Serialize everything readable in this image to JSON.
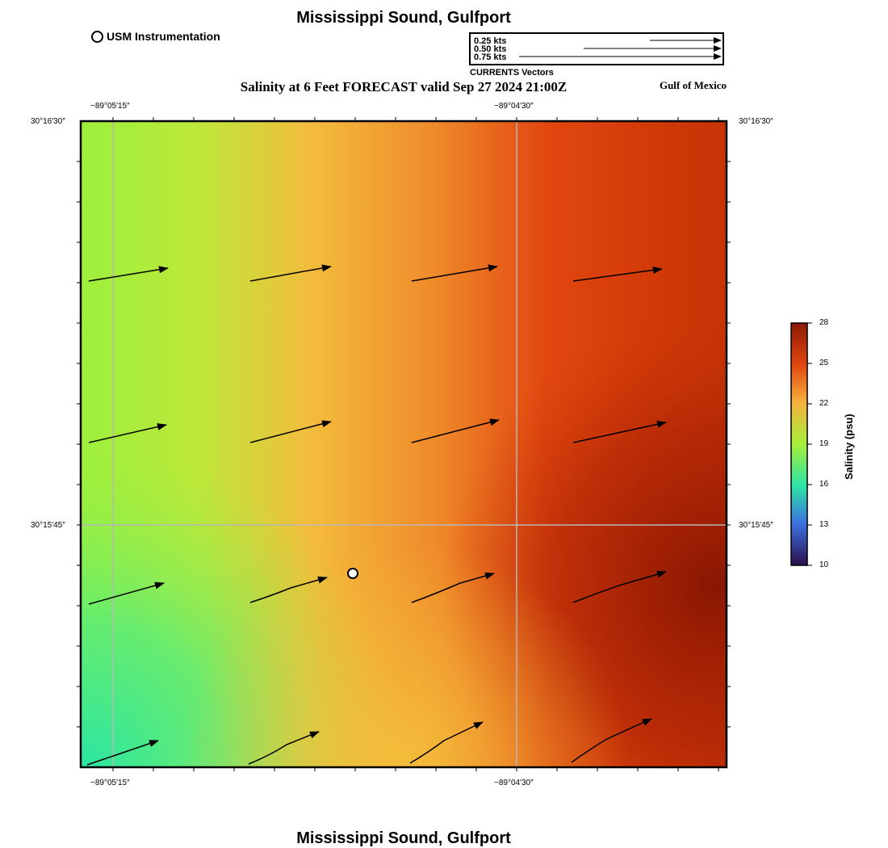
{
  "header": {
    "title": "Mississippi Sound, Gulfport",
    "subtitle": "Salinity at 6 Feet FORECAST valid Sep 27 2024 21:00Z",
    "region": "Gulf of Mexico",
    "footer_title": "Mississippi Sound, Gulfport"
  },
  "station_legend": {
    "label": "USM Instrumentation",
    "icon": "circle-marker-icon"
  },
  "vector_legend": {
    "caption": "CURRENTS Vectors",
    "entries": [
      {
        "label": "0.25 kts",
        "speed": 0.25
      },
      {
        "label": "0.50 kts",
        "speed": 0.5
      },
      {
        "label": "0.75 kts",
        "speed": 0.75
      }
    ]
  },
  "axes": {
    "lon_labels": [
      "−89°05′15″",
      "−89°04′30″"
    ],
    "lat_labels": [
      "30°16′30″",
      "30°15′45″"
    ]
  },
  "colorbar": {
    "label": "Salinity (psu)",
    "ticks": [
      "28",
      "25",
      "22",
      "19",
      "16",
      "13",
      "10"
    ],
    "colors": [
      "#8b1a03",
      "#e2450e",
      "#f6b33c",
      "#a6ef3a",
      "#2ce6a4",
      "#3d6fe0",
      "#2b0f4c"
    ]
  },
  "map": {
    "station": {
      "name": "USM Instrumentation"
    },
    "current_arrow_rows": 4,
    "current_arrow_cols": 4
  }
}
